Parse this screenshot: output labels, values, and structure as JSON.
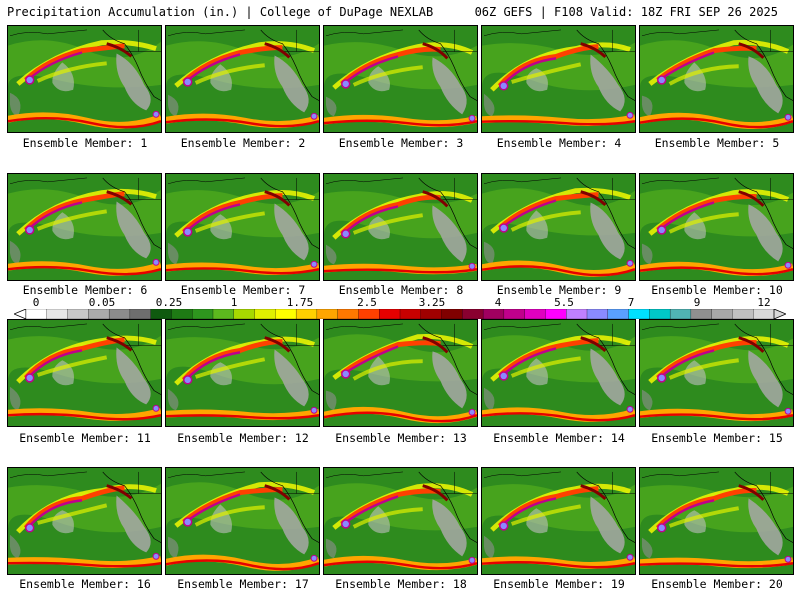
{
  "header": {
    "left_title": "Precipitation Accumulation (in.) | College of DuPage NEXLAB",
    "right_title": "06Z GEFS | F108 Valid: 18Z FRI SEP 26 2025"
  },
  "legend": {
    "tick_labels": [
      "0",
      "0.05",
      "0.25",
      "1",
      "1.75",
      "2.5",
      "3.25",
      "4",
      "5.5",
      "7",
      "9",
      "12"
    ],
    "colors": [
      "#ffffff",
      "#e6e6e6",
      "#c8c8c8",
      "#aaaaaa",
      "#8c8c8c",
      "#6e6e6e",
      "#0f5a0f",
      "#1e7a14",
      "#2e961e",
      "#5cb81e",
      "#a8d800",
      "#e0f000",
      "#ffff00",
      "#ffd000",
      "#ffa500",
      "#ff7800",
      "#ff4000",
      "#e60000",
      "#c80000",
      "#a00000",
      "#800000",
      "#8a0030",
      "#a00060",
      "#c0008c",
      "#e000c0",
      "#ff00ff",
      "#c080ff",
      "#8a8aff",
      "#5aa0ff",
      "#00e0ff",
      "#00c8c8",
      "#50b4b4",
      "#909090",
      "#a8a8a8",
      "#c0c0c0",
      "#d8d8d8"
    ]
  },
  "members": [
    {
      "label": "Ensemble Member: 1"
    },
    {
      "label": "Ensemble Member: 2"
    },
    {
      "label": "Ensemble Member: 3"
    },
    {
      "label": "Ensemble Member: 4"
    },
    {
      "label": "Ensemble Member: 5"
    },
    {
      "label": "Ensemble Member: 6"
    },
    {
      "label": "Ensemble Member: 7"
    },
    {
      "label": "Ensemble Member: 8"
    },
    {
      "label": "Ensemble Member: 9"
    },
    {
      "label": "Ensemble Member: 10"
    },
    {
      "label": "Ensemble Member: 11"
    },
    {
      "label": "Ensemble Member: 12"
    },
    {
      "label": "Ensemble Member: 13"
    },
    {
      "label": "Ensemble Member: 14"
    },
    {
      "label": "Ensemble Member: 15"
    },
    {
      "label": "Ensemble Member: 16"
    },
    {
      "label": "Ensemble Member: 17"
    },
    {
      "label": "Ensemble Member: 18"
    },
    {
      "label": "Ensemble Member: 19"
    },
    {
      "label": "Ensemble Member: 20"
    }
  ]
}
